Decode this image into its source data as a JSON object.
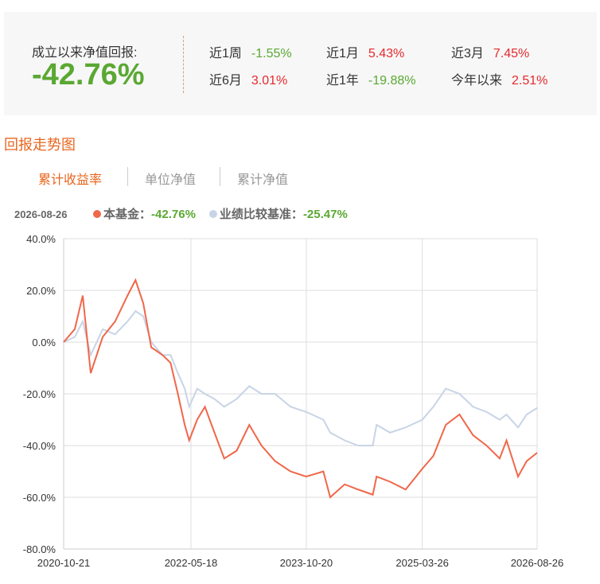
{
  "summary": {
    "label": "成立以来净值回报:",
    "value": "-42.76%"
  },
  "stats": [
    {
      "label": "近1周",
      "value": "-1.55%"
    },
    {
      "label": "近1月",
      "value": "5.43%"
    },
    {
      "label": "近3月",
      "value": "7.45%"
    },
    {
      "label": "近6月",
      "value": "3.01%"
    },
    {
      "label": "近1年",
      "value": "-19.88%"
    },
    {
      "label": "今年以来",
      "value": "2.51%"
    }
  ],
  "section_title": "回报走势图",
  "tabs": [
    "累计收益率",
    "单位净值",
    "累计净值"
  ],
  "chart_data": {
    "type": "line",
    "legend_date": "2026-08-26",
    "separator": "：",
    "x": [
      "2020-10-21",
      "2020-12-10",
      "2021-01-15",
      "2021-02-20",
      "2021-04-15",
      "2021-06-10",
      "2021-08-05",
      "2021-09-10",
      "2021-10-15",
      "2021-11-20",
      "2022-01-10",
      "2022-02-15",
      "2022-03-20",
      "2022-04-20",
      "2022-05-10",
      "2022-06-15",
      "2022-07-20",
      "2022-09-01",
      "2022-10-15",
      "2022-12-10",
      "2023-02-05",
      "2023-04-01",
      "2023-06-01",
      "2023-08-10",
      "2023-10-20",
      "2024-01-05",
      "2024-02-05",
      "2024-04-10",
      "2024-06-10",
      "2024-08-15",
      "2024-09-01",
      "2024-11-01",
      "2025-01-10",
      "2025-03-26",
      "2025-05-15",
      "2025-07-10",
      "2025-09-10",
      "2025-11-10",
      "2026-01-10",
      "2026-03-10",
      "2026-04-10",
      "2026-06-01",
      "2026-07-10",
      "2026-08-26"
    ],
    "series": [
      {
        "name": "本基金",
        "color": "#f0674a",
        "end_label": "-42.76%",
        "values": [
          0,
          5,
          18,
          -12,
          2,
          8,
          18,
          24,
          15,
          -2,
          -5,
          -8,
          -20,
          -32,
          -38,
          -30,
          -25,
          -35,
          -45,
          -42,
          -32,
          -40,
          -46,
          -50,
          -52,
          -50,
          -60,
          -55,
          -57,
          -59,
          -52,
          -54,
          -57,
          -49,
          -44,
          -32,
          -28,
          -36,
          -40,
          -45,
          -38,
          -52,
          -46,
          -42.76
        ]
      },
      {
        "name": "业绩比较基准",
        "color": "#c8d4e6",
        "end_label": "-25.47%",
        "values": [
          0,
          2,
          8,
          -5,
          5,
          3,
          8,
          12,
          10,
          0,
          -5,
          -5,
          -12,
          -18,
          -25,
          -18,
          -20,
          -22,
          -25,
          -22,
          -17,
          -20,
          -20,
          -25,
          -27,
          -30,
          -35,
          -38,
          -40,
          -40,
          -32,
          -35,
          -33,
          -30,
          -25,
          -18,
          -20,
          -25,
          -27,
          -30,
          -28,
          -33,
          -28,
          -25.47
        ]
      }
    ],
    "ylim": [
      -80,
      40
    ],
    "yticks": [
      {
        "value": -80,
        "label": "-80.0%"
      },
      {
        "value": -60,
        "label": "-60.0%"
      },
      {
        "value": -40,
        "label": "-40.0%"
      },
      {
        "value": -20,
        "label": "-20.0%"
      },
      {
        "value": 0,
        "label": "0.0%"
      },
      {
        "value": 20,
        "label": "20.0%"
      },
      {
        "value": 40,
        "label": "40.0%"
      }
    ],
    "xlim": [
      "2020-10-21",
      "2026-08-26"
    ],
    "xticks": [
      "2020-10-21",
      "2022-05-18",
      "2023-10-20",
      "2025-03-26",
      "2026-08-26"
    ],
    "grid": true
  }
}
